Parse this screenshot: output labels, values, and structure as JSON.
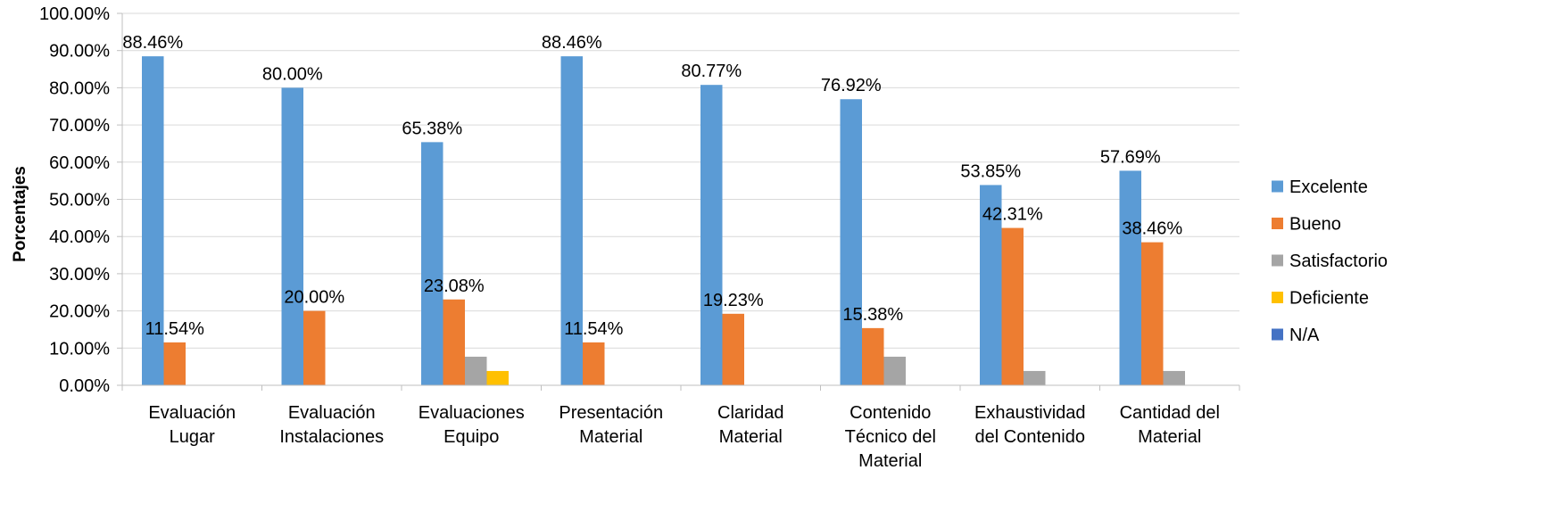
{
  "chart_data": {
    "type": "bar",
    "title": "",
    "xlabel": "",
    "ylabel": "Porcentajes",
    "ylim": [
      0,
      100
    ],
    "y_tick_step": 10,
    "y_tick_labels": [
      "0.00%",
      "10.00%",
      "20.00%",
      "30.00%",
      "40.00%",
      "50.00%",
      "60.00%",
      "70.00%",
      "80.00%",
      "90.00%",
      "100.00%"
    ],
    "grid": true,
    "legend_position": "right",
    "categories": [
      [
        "Evaluación",
        "Lugar"
      ],
      [
        "Evaluación",
        "Instalaciones"
      ],
      [
        "Evaluaciones",
        "Equipo"
      ],
      [
        "Presentación",
        "Material"
      ],
      [
        "Claridad",
        "Material"
      ],
      [
        "Contenido",
        "Técnico del",
        "Material"
      ],
      [
        "Exhaustividad",
        "del Contenido"
      ],
      [
        "Cantidad del",
        "Material"
      ]
    ],
    "series": [
      {
        "name": "Excelente",
        "color": "#5B9BD5",
        "values": [
          88.46,
          80.0,
          65.38,
          88.46,
          80.77,
          76.92,
          53.85,
          57.69
        ],
        "labels": [
          "88.46%",
          "80.00%",
          "65.38%",
          "88.46%",
          "80.77%",
          "76.92%",
          "53.85%",
          "57.69%"
        ]
      },
      {
        "name": "Bueno",
        "color": "#ED7D31",
        "values": [
          11.54,
          20.0,
          23.08,
          11.54,
          19.23,
          15.38,
          42.31,
          38.46
        ],
        "labels": [
          "11.54%",
          "20.00%",
          "23.08%",
          "11.54%",
          "19.23%",
          "15.38%",
          "42.31%",
          "38.46%"
        ]
      },
      {
        "name": "Satisfactorio",
        "color": "#A5A5A5",
        "values": [
          0,
          0,
          7.69,
          0,
          0,
          7.69,
          3.85,
          3.85
        ],
        "labels": []
      },
      {
        "name": "Deficiente",
        "color": "#FFC000",
        "values": [
          0,
          0,
          3.85,
          0,
          0,
          0,
          0,
          0
        ],
        "labels": []
      },
      {
        "name": "N/A",
        "color": "#4472C4",
        "values": [
          0,
          0,
          0,
          0,
          0,
          0,
          0,
          0
        ],
        "labels": []
      }
    ]
  },
  "style": {
    "gridline_color": "#D9D9D9",
    "axis_color": "#BFBFBF"
  }
}
